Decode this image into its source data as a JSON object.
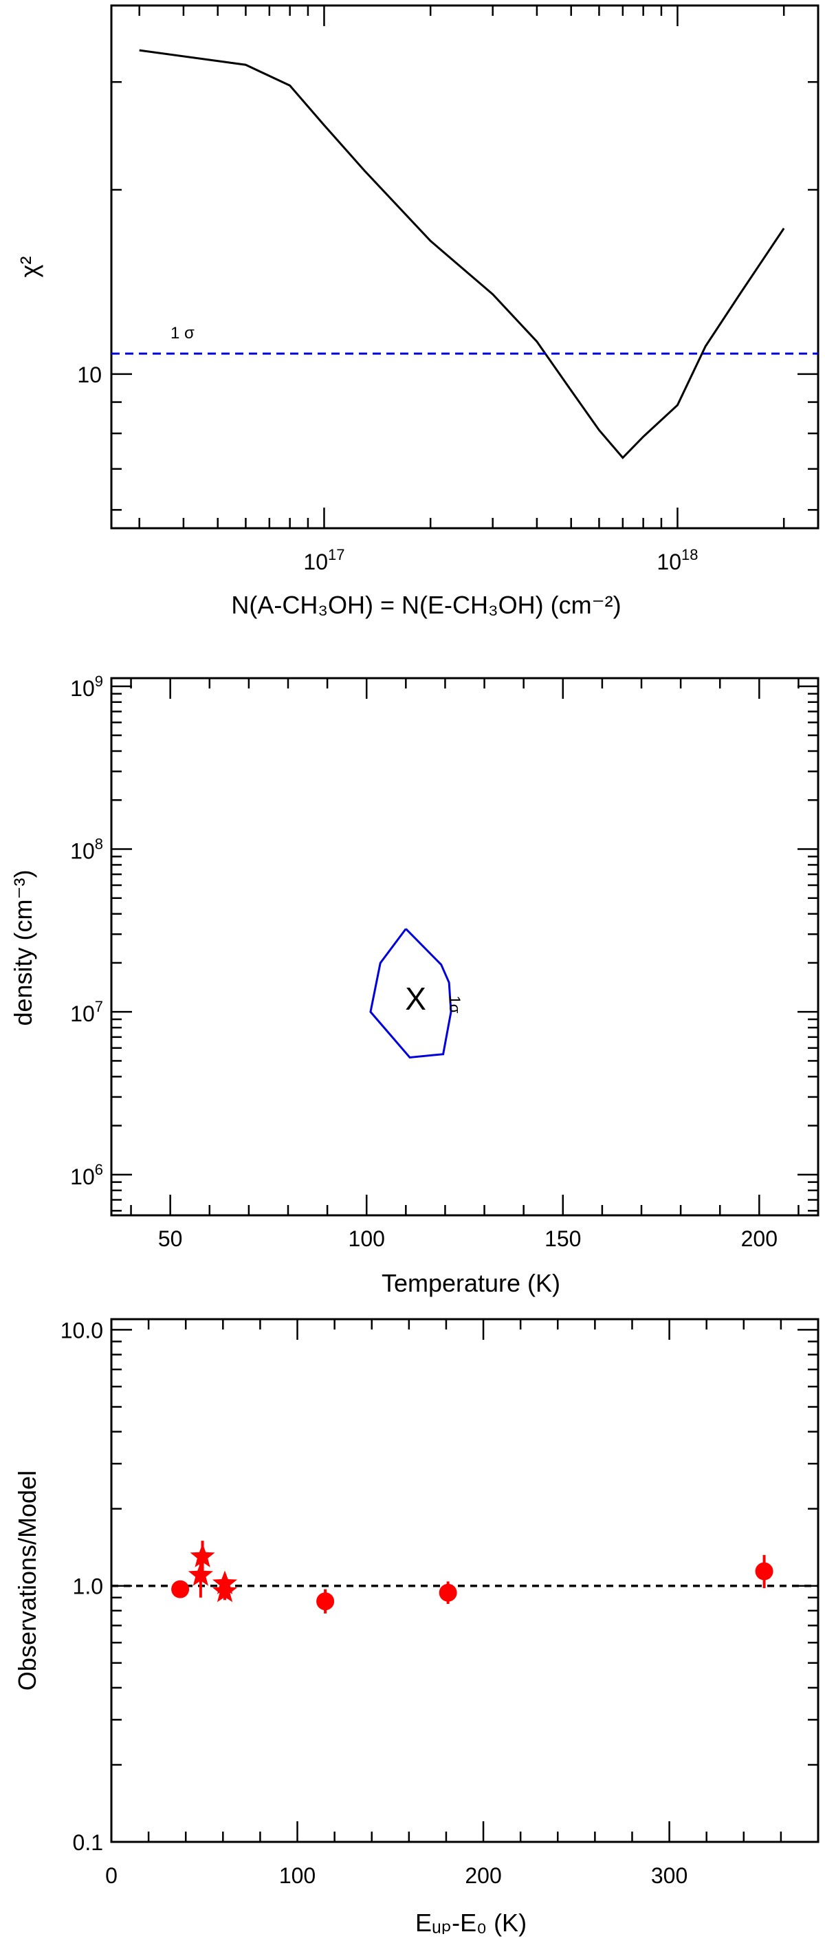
{
  "chart_data": [
    {
      "type": "line",
      "xlabel": "N(A-CH₃OH) = N(E-CH₃OH) (cm⁻²)",
      "ylabel": "χ²",
      "x_scale": "log",
      "y_scale": "log",
      "xlim": [
        2.5e+16,
        2.5e+18
      ],
      "ylim": [
        5.6,
        40
      ],
      "x_tick_labels": [
        {
          "value": 1e+17,
          "base": "10",
          "exp": "17"
        },
        {
          "value": 1e+18,
          "base": "10",
          "exp": "18"
        }
      ],
      "y_tick_labels": [
        {
          "value": 10,
          "label": "10"
        }
      ],
      "series": [
        {
          "color": "#000000",
          "x": [
            3e+16,
            6e+16,
            8e+16,
            1e+17,
            1.3e+17,
            2e+17,
            3e+17,
            4e+17,
            5e+17,
            6e+17,
            7e+17,
            8e+17,
            1e+18,
            1.2e+18,
            1.5e+18,
            2e+18
          ],
          "y": [
            33.8,
            32.0,
            29.6,
            25.5,
            21.5,
            16.5,
            13.5,
            11.3,
            9.4,
            8.1,
            7.3,
            7.9,
            8.9,
            11.1,
            13.5,
            17.3
          ]
        }
      ],
      "hline": {
        "y": 10.8,
        "color": "#0000dd",
        "style": "dashed",
        "label": "1 σ"
      }
    },
    {
      "type": "contour",
      "xlabel": "Temperature (K)",
      "ylabel": "density (cm⁻³)",
      "xlim": [
        35,
        215
      ],
      "ylim_log10": [
        5.75,
        9.05
      ],
      "x_tick_labels": [
        "50",
        "100",
        "150",
        "200"
      ],
      "x_tick_values": [
        50,
        100,
        150,
        200
      ],
      "y_tick_labels": [
        {
          "value": 6,
          "base": "10",
          "exp": "6"
        },
        {
          "value": 7,
          "base": "10",
          "exp": "7"
        },
        {
          "value": 8,
          "base": "10",
          "exp": "8"
        },
        {
          "value": 9,
          "base": "10",
          "exp": "9"
        }
      ],
      "contour": {
        "label": "1σ",
        "color": "#0000dd",
        "points_T_logn": [
          [
            110,
            7.51
          ],
          [
            119,
            7.29
          ],
          [
            121,
            7.18
          ],
          [
            121.5,
            7.0
          ],
          [
            119.5,
            6.74
          ],
          [
            111,
            6.72
          ],
          [
            101,
            7.0
          ],
          [
            103.5,
            7.3
          ],
          [
            110,
            7.51
          ]
        ]
      },
      "best_fit": {
        "T": 112.5,
        "log_n": 7.08,
        "marker": "X",
        "color": "#ff0000"
      }
    },
    {
      "type": "scatter",
      "xlabel": "Eᵤₚ-E₀ (K)",
      "ylabel": "Observations/Model",
      "y_scale": "log",
      "xlim": [
        0,
        380
      ],
      "ylim": [
        0.1,
        11
      ],
      "x_tick_labels": [
        "0",
        "100",
        "200",
        "300"
      ],
      "x_tick_values": [
        0,
        100,
        200,
        300
      ],
      "y_tick_labels": [
        "0.1",
        "1.0",
        "10.0"
      ],
      "y_tick_values": [
        0.1,
        1.0,
        10.0
      ],
      "hline": {
        "y": 1.0,
        "color": "#000000",
        "style": "dashed"
      },
      "series": [
        {
          "marker": "circle",
          "color": "#ff0000",
          "points": [
            {
              "x": 37,
              "y": 0.97,
              "lo": 0.9,
              "hi": 1.04
            },
            {
              "x": 115,
              "y": 0.87,
              "lo": 0.78,
              "hi": 0.97
            },
            {
              "x": 181,
              "y": 0.94,
              "lo": 0.85,
              "hi": 1.04
            },
            {
              "x": 351,
              "y": 1.14,
              "lo": 0.98,
              "hi": 1.32
            }
          ]
        },
        {
          "marker": "star",
          "color": "#ff0000",
          "points": [
            {
              "x": 49,
              "y": 1.3,
              "lo": 1.1,
              "hi": 1.5
            },
            {
              "x": 48,
              "y": 1.1,
              "lo": 0.9,
              "hi": 1.3
            },
            {
              "x": 61,
              "y": 1.02,
              "lo": 0.94,
              "hi": 1.1
            },
            {
              "x": 61,
              "y": 0.95,
              "lo": 0.88,
              "hi": 1.02
            }
          ]
        }
      ]
    }
  ]
}
